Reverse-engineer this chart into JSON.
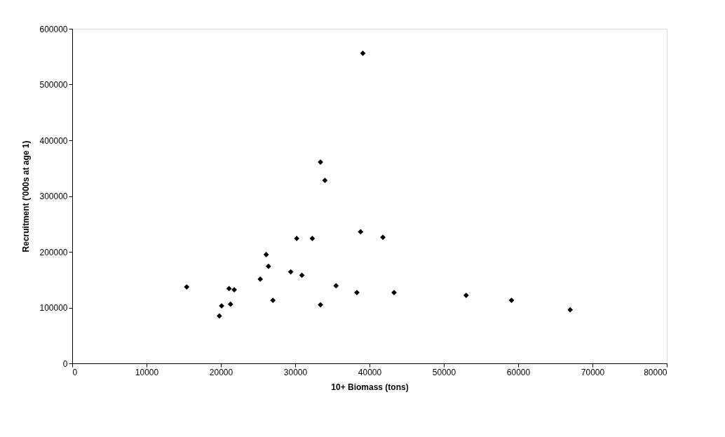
{
  "chart_data": {
    "type": "scatter",
    "xlabel": "10+ Biomass (tons)",
    "ylabel": "Recruitment ('000s at age 1)",
    "x": [
      33400,
      34000,
      38800,
      41800,
      30200,
      32300,
      26100,
      26400,
      29400,
      30900,
      25300,
      15400,
      21100,
      21800,
      35500,
      38300,
      27000,
      21300,
      20100,
      33400,
      19800,
      39100,
      43300,
      53000,
      59100,
      67000
    ],
    "series": [
      {
        "color": "#000000",
        "values": [
          361000,
          328000,
          236000,
          226000,
          224000,
          224000,
          195000,
          174000,
          164000,
          158000,
          151000,
          137000,
          134000,
          132000,
          139000,
          127000,
          113000,
          106000,
          103000,
          105000,
          85000,
          556000,
          127000,
          122000,
          113000,
          96000
        ]
      }
    ],
    "xlim": [
      0,
      80000
    ],
    "ylim": [
      0,
      600000
    ],
    "xticks": [
      0,
      10000,
      20000,
      30000,
      40000,
      50000,
      60000,
      70000,
      80000
    ],
    "yticks": [
      0,
      100000,
      200000,
      300000,
      400000,
      500000,
      600000
    ],
    "marker": "diamond",
    "grid": false,
    "legend": false
  }
}
